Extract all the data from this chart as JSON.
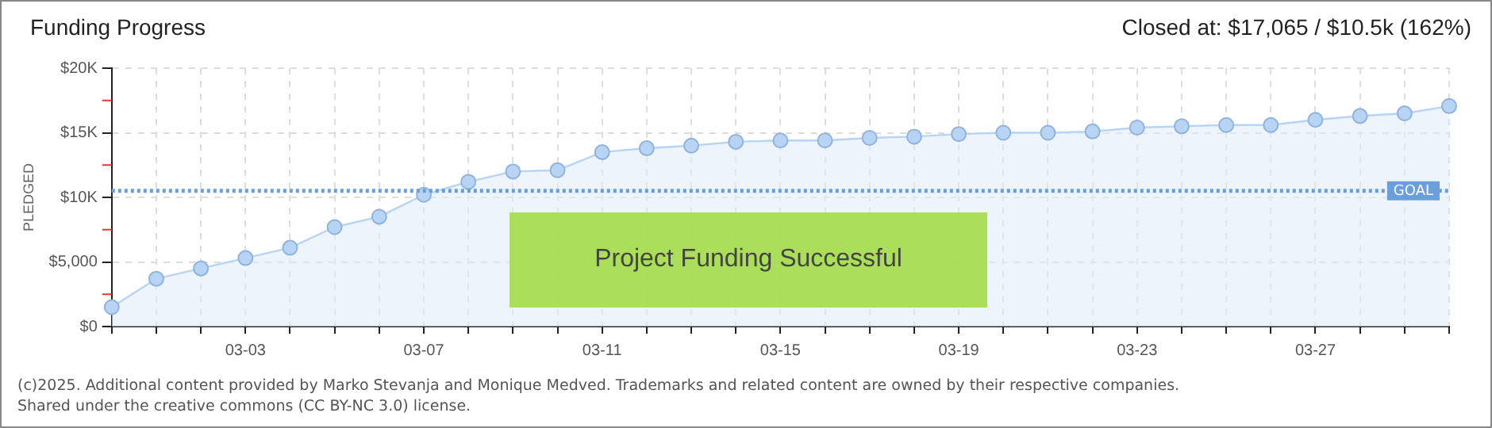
{
  "chart_data": {
    "type": "area",
    "title": "Funding Progress",
    "subtitle": "Closed at: $17,065 / $10.5k (162%)",
    "ylabel": "PLEDGED",
    "categories": [
      null,
      null,
      null,
      "03-03",
      null,
      null,
      null,
      "03-07",
      null,
      null,
      null,
      "03-11",
      null,
      null,
      null,
      "03-15",
      null,
      null,
      null,
      "03-19",
      null,
      null,
      null,
      "03-23",
      null,
      null,
      null,
      "03-27",
      null,
      null,
      null
    ],
    "series": [
      {
        "color": "#b8d4f4",
        "values": [
          1500,
          3700,
          4500,
          5300,
          6100,
          7700,
          8500,
          10200,
          11200,
          12000,
          12100,
          13500,
          13800,
          14000,
          14300,
          14400,
          14400,
          14600,
          14700,
          14900,
          15000,
          15000,
          15100,
          15400,
          15500,
          15600,
          15600,
          16000,
          16300,
          16500,
          17065
        ]
      }
    ],
    "ylim": [
      0,
      20000
    ],
    "yticks": [
      {
        "value": 0,
        "label": "$0"
      },
      {
        "value": 2500,
        "label": null
      },
      {
        "value": 5000,
        "label": "$5,000"
      },
      {
        "value": 7500,
        "label": null
      },
      {
        "value": 10000,
        "label": "$10K"
      },
      {
        "value": 12500,
        "label": null
      },
      {
        "value": 15000,
        "label": "$15K"
      },
      {
        "value": 17500,
        "label": null
      },
      {
        "value": 20000,
        "label": "$20K"
      }
    ],
    "grid": true,
    "marker": "circle",
    "legend": false,
    "ref_lines": [
      {
        "axis": "y",
        "value": 10500,
        "label": "GOAL",
        "color": "#6a9fdc",
        "line_style": "dotted"
      }
    ],
    "annotations": [
      "Project Funding Successful",
      "(c)2025. Additional content provided by Marko Stevanja and Monique Medved. Trademarks and related content are owned by their respective companies.",
      "Shared under the creative commons (CC BY-NC 3.0) license."
    ]
  }
}
